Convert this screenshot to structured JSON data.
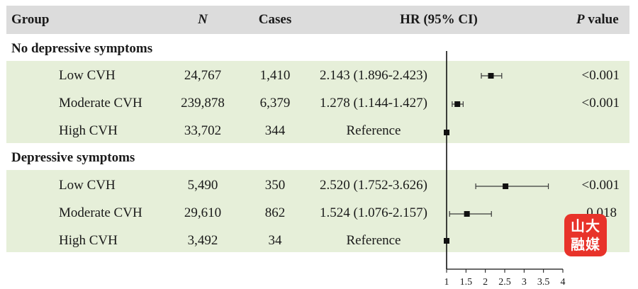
{
  "header": {
    "group": "Group",
    "n": "N",
    "cases": "Cases",
    "hr": "HR (95% CI)",
    "p_italic": "P",
    "p_rest": " value"
  },
  "logo_text": "山大融媒",
  "colors": {
    "band": "#e6efd9",
    "header": "#dcdcdc",
    "marker": "#111111"
  },
  "chart_data": {
    "type": "forest",
    "x_axis": {
      "min": 1,
      "max": 4,
      "ticks": [
        "1",
        "1.5",
        "2",
        "2.5",
        "3",
        "3.5",
        "4"
      ],
      "reference_line": 1
    },
    "groups": [
      {
        "title": "No depressive symptoms",
        "rows": [
          {
            "label": "Low CVH",
            "n": "24,767",
            "cases": "1,410",
            "hr_text": "2.143 (1.896-2.423)",
            "hr": 2.143,
            "lo": 1.896,
            "hi": 2.423,
            "p": "<0.001"
          },
          {
            "label": "Moderate CVH",
            "n": "239,878",
            "cases": "6,379",
            "hr_text": "1.278 (1.144-1.427)",
            "hr": 1.278,
            "lo": 1.144,
            "hi": 1.427,
            "p": "<0.001"
          },
          {
            "label": "High CVH",
            "n": "33,702",
            "cases": "344",
            "hr_text": "Reference",
            "hr": 1,
            "lo": 1,
            "hi": 1,
            "p": ""
          }
        ]
      },
      {
        "title": "Depressive symptoms",
        "rows": [
          {
            "label": "Low CVH",
            "n": "5,490",
            "cases": "350",
            "hr_text": "2.520 (1.752-3.626)",
            "hr": 2.52,
            "lo": 1.752,
            "hi": 3.626,
            "p": "<0.001"
          },
          {
            "label": "Moderate CVH",
            "n": "29,610",
            "cases": "862",
            "hr_text": "1.524 (1.076-2.157)",
            "hr": 1.524,
            "lo": 1.076,
            "hi": 2.157,
            "p": "0.018"
          },
          {
            "label": "High CVH",
            "n": "3,492",
            "cases": "34",
            "hr_text": "Reference",
            "hr": 1,
            "lo": 1,
            "hi": 1,
            "p": ""
          }
        ]
      }
    ]
  }
}
